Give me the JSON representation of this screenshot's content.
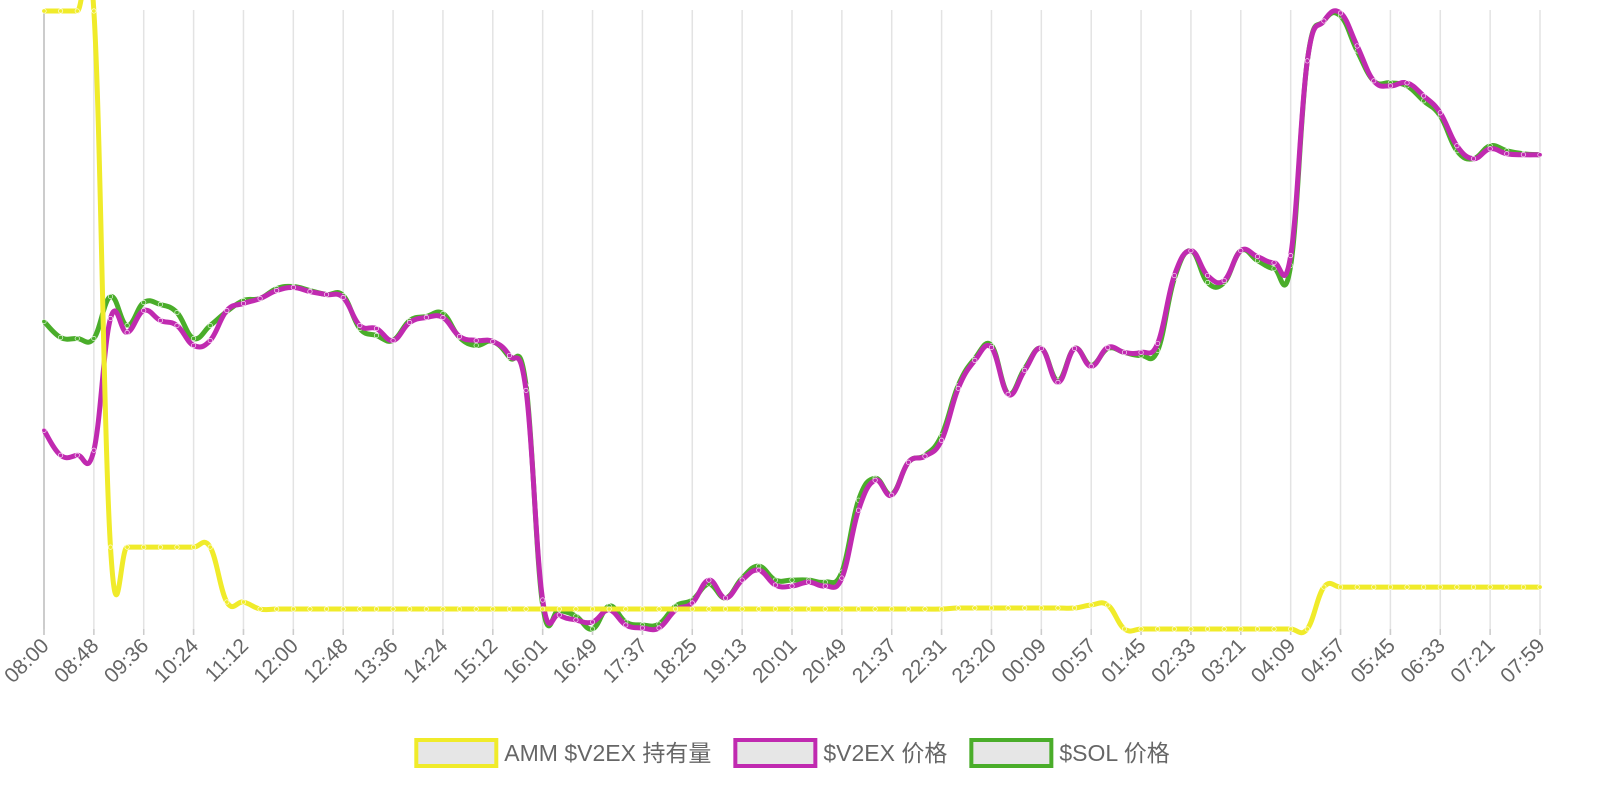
{
  "chart_data": {
    "type": "line",
    "categories": [
      "08:00",
      null,
      null,
      "08:48",
      null,
      null,
      "09:36",
      null,
      null,
      "10:24",
      null,
      null,
      "11:12",
      null,
      null,
      "12:00",
      null,
      null,
      "12:48",
      null,
      null,
      "13:36",
      null,
      null,
      "14:24",
      null,
      null,
      "15:12",
      null,
      null,
      "16:01",
      null,
      null,
      "16:49",
      null,
      null,
      "17:37",
      null,
      null,
      "18:25",
      null,
      null,
      "19:13",
      null,
      null,
      "20:01",
      null,
      null,
      "20:49",
      null,
      null,
      "21:37",
      null,
      null,
      "22:31",
      null,
      null,
      "23:20",
      null,
      null,
      "00:09",
      null,
      null,
      "00:57",
      null,
      null,
      "01:45",
      null,
      null,
      "02:33",
      null,
      null,
      "03:21",
      null,
      null,
      "04:09",
      null,
      null,
      "04:57",
      null,
      null,
      "05:45",
      null,
      null,
      "06:33",
      null,
      null,
      "07:21",
      null,
      null,
      "07:59"
    ],
    "ylim": [
      0,
      620
    ],
    "grid": true,
    "series": [
      {
        "name": "AMM $V2EX 持有量",
        "color": "#f0eb2a",
        "values": [
          619,
          619,
          619,
          619,
          82,
          82,
          82,
          82,
          82,
          82,
          82,
          27,
          27,
          20,
          20,
          20,
          20,
          20,
          20,
          20,
          20,
          20,
          20,
          20,
          20,
          20,
          20,
          20,
          20,
          20,
          20,
          20,
          20,
          20,
          20,
          20,
          20,
          20,
          20,
          20,
          20,
          20,
          20,
          20,
          20,
          20,
          20,
          20,
          20,
          20,
          20,
          20,
          20,
          20,
          20,
          21,
          21,
          21,
          21,
          21,
          21,
          21,
          21,
          24,
          24,
          0,
          0,
          0,
          0,
          0,
          0,
          0,
          0,
          0,
          0,
          0,
          0,
          42,
          42,
          42,
          42,
          42,
          42,
          42,
          42,
          42,
          42,
          42,
          42,
          42,
          42
        ]
      },
      {
        "name": "$V2EX 价格",
        "color": "#c02ab0",
        "values": [
          199,
          174,
          174,
          179,
          311,
          297,
          319,
          309,
          304,
          284,
          289,
          319,
          326,
          331,
          339,
          342,
          338,
          335,
          332,
          304,
          301,
          289,
          307,
          312,
          312,
          293,
          289,
          288,
          274,
          239,
          29,
          14,
          9,
          7,
          19,
          4,
          1,
          1,
          19,
          26,
          49,
          31,
          49,
          59,
          44,
          43,
          47,
          43,
          51,
          119,
          149,
          134,
          167,
          173,
          189,
          241,
          269,
          282,
          235,
          259,
          281,
          247,
          281,
          263,
          282,
          277,
          277,
          286,
          354,
          379,
          354,
          349,
          379,
          373,
          367,
          374,
          569,
          609,
          617,
          584,
          549,
          544,
          547,
          534,
          517,
          484,
          471,
          481,
          476,
          475,
          475
        ]
      },
      {
        "name": "$SOL 价格",
        "color": "#4aad2a",
        "values": [
          308,
          292,
          291,
          291,
          333,
          304,
          327,
          325,
          317,
          291,
          304,
          318,
          329,
          331,
          341,
          343,
          339,
          335,
          334,
          301,
          294,
          289,
          309,
          313,
          316,
          292,
          284,
          288,
          272,
          244,
          24,
          19,
          13,
          0,
          23,
          7,
          4,
          5,
          23,
          29,
          45,
          31,
          51,
          63,
          49,
          49,
          49,
          47,
          57,
          129,
          151,
          135,
          167,
          174,
          194,
          244,
          271,
          284,
          236,
          261,
          281,
          249,
          281,
          264,
          281,
          277,
          274,
          279,
          351,
          379,
          347,
          347,
          379,
          369,
          361,
          364,
          569,
          609,
          614,
          579,
          549,
          547,
          544,
          529,
          514,
          479,
          471,
          484,
          479,
          476,
          475
        ]
      }
    ]
  }
}
